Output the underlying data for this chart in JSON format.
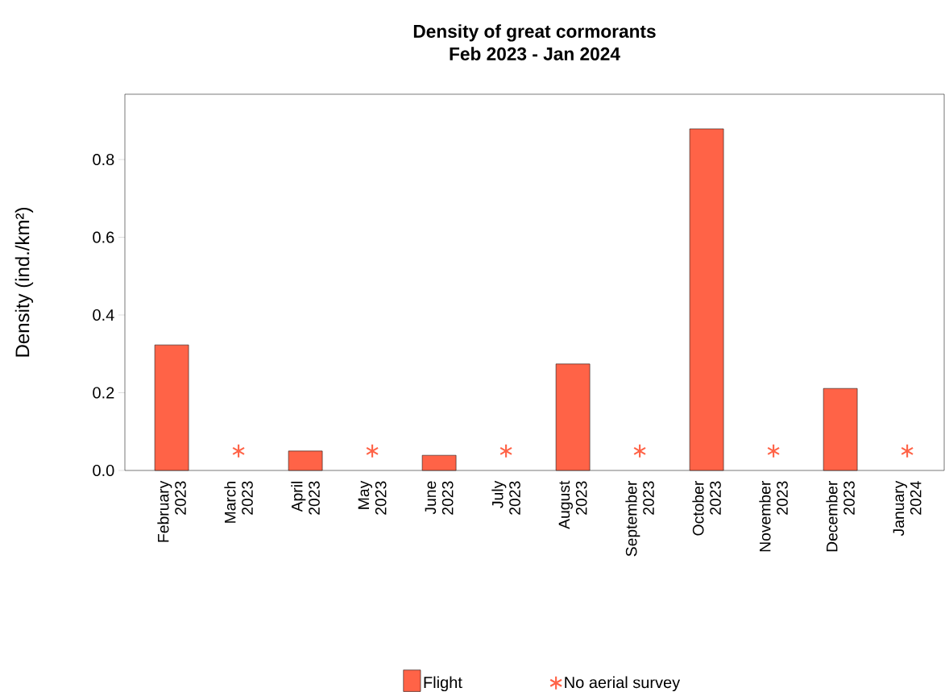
{
  "chart_data": {
    "type": "bar",
    "title": "Density of great cormorants",
    "subtitle": "Feb 2023 - Jan 2024",
    "ylabel": "Density (ind./km²)",
    "categories": [
      "February 2023",
      "March 2023",
      "April 2023",
      "May 2023",
      "June 2023",
      "July 2023",
      "August 2023",
      "September 2023",
      "October 2023",
      "November 2023",
      "December 2023",
      "January 2024"
    ],
    "series": [
      {
        "name": "Flight",
        "type": "bar",
        "color": "#ff6347",
        "values": [
          0.323,
          null,
          0.05,
          null,
          0.039,
          null,
          0.274,
          null,
          0.879,
          null,
          0.211,
          null
        ]
      },
      {
        "name": "No aerial survey",
        "type": "scatter",
        "marker": "cross",
        "color": "#ff6347",
        "values": [
          null,
          0.05,
          null,
          0.05,
          null,
          0.05,
          null,
          0.05,
          null,
          0.05,
          null,
          0.05
        ]
      }
    ],
    "ylim": [
      0,
      0.968
    ],
    "yticks": [
      {
        "value": 0,
        "label": "0.0"
      },
      {
        "value": 0.2,
        "label": "0.2"
      },
      {
        "value": 0.4,
        "label": "0.4"
      },
      {
        "value": 0.6,
        "label": "0.6"
      },
      {
        "value": 0.8,
        "label": "0.8"
      }
    ],
    "legend": "bottom"
  }
}
